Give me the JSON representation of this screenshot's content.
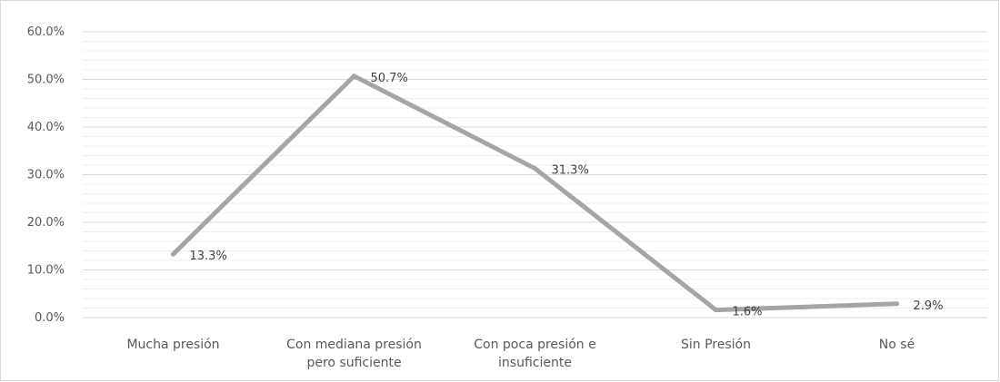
{
  "chart_data": {
    "type": "line",
    "categories": [
      [
        "Mucha presión"
      ],
      [
        "Con mediana presión",
        "pero suficiente"
      ],
      [
        "Con poca presión e",
        "insuficiente"
      ],
      [
        "Sin Presión"
      ],
      [
        "No sé"
      ]
    ],
    "values": [
      13.3,
      50.7,
      31.3,
      1.6,
      2.9
    ],
    "data_labels": [
      "13.3%",
      "50.7%",
      "31.3%",
      "1.6%",
      "2.9%"
    ],
    "y_ticks": [
      0,
      10,
      20,
      30,
      40,
      50,
      60
    ],
    "y_tick_labels": [
      "0.0%",
      "10.0%",
      "20.0%",
      "30.0%",
      "40.0%",
      "50.0%",
      "60.0%"
    ],
    "ylim": [
      0,
      60
    ],
    "major_grid": true,
    "minor_grid": true,
    "legend": "none",
    "title": "",
    "xlabel": "",
    "ylabel": "",
    "line_color": "#a5a5a5"
  }
}
